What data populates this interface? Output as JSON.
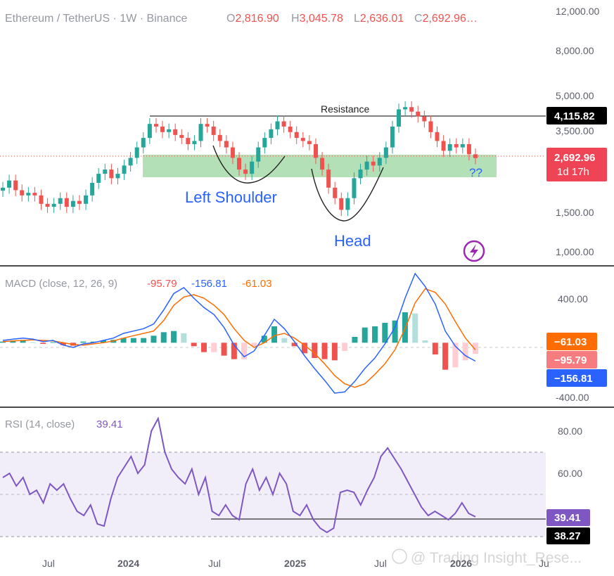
{
  "header": {
    "symbol": "Ethereum / TetherUS · 1W · Binance",
    "o_label": "O",
    "o_value": "2,816.90",
    "h_label": "H",
    "h_value": "3,045.78",
    "l_label": "L",
    "l_value": "2,636.01",
    "c_label": "C",
    "c_value": "2,692.96…"
  },
  "price_axis": [
    "12,000.00",
    "8,000.00",
    "5,000.00",
    "3,500.00",
    "1,500.00",
    "1,000.00"
  ],
  "price_tags": {
    "resistance_value": "4,115.82",
    "last_price": "2,692.96",
    "countdown": "1d 17h"
  },
  "annotations": {
    "resistance": "Resistance",
    "left_shoulder": "Left Shoulder",
    "head": "Head",
    "question": "??"
  },
  "macd": {
    "label": "MACD (close, 12, 26, 9)",
    "hist_value": "-95.79",
    "macd_value": "-156.81",
    "signal_value": "-61.03",
    "axis": [
      "400.00",
      "-400.00"
    ],
    "tag_signal": "−61.03",
    "tag_hist": "−95.79",
    "tag_macd": "−156.81"
  },
  "rsi": {
    "label": "RSI (14, close)",
    "value": "39.41",
    "axis": [
      "80.00",
      "60.00"
    ],
    "tag_value": "39.41",
    "tag_line": "38.27"
  },
  "time_axis": [
    "Jul",
    "2024",
    "Jul",
    "2025",
    "Jul",
    "2026",
    "Ju"
  ],
  "watermark": "@ Trading Insight_Rese...",
  "colors": {
    "up": "#26a69a",
    "down": "#ef5350",
    "macd": "#2962ff",
    "signal": "#ff6d00",
    "rsi": "#7e57c2",
    "zone": "#99d59e",
    "pattern_text": "#2962ff"
  },
  "chart_data": [
    {
      "type": "candlestick",
      "title": "Ethereum / TetherUS · 1W · Binance",
      "scale": "log",
      "ylim": [
        950,
        12500
      ],
      "x_ticks": [
        "Jul",
        "2024",
        "Jul",
        "2025",
        "Jul",
        "2026",
        "Ju"
      ],
      "y_ticks": [
        12000,
        8000,
        5000,
        3500,
        1500,
        1000
      ],
      "support_zone": [
        2150,
        2800
      ],
      "resistance": 4115.82,
      "last": {
        "open": 2816.9,
        "high": 3045.78,
        "low": 2636.01,
        "close": 2692.96
      },
      "approx_close_path": [
        2000,
        2150,
        1950,
        1850,
        1900,
        1850,
        1700,
        1650,
        1700,
        1800,
        1650,
        1750,
        1700,
        1850,
        2100,
        2300,
        2400,
        2200,
        2300,
        2500,
        2700,
        3000,
        3300,
        3800,
        3700,
        3500,
        3600,
        3400,
        3300,
        3100,
        3200,
        3800,
        3700,
        3400,
        3200,
        3000,
        2700,
        2400,
        2300,
        2600,
        3000,
        3300,
        3600,
        3900,
        3700,
        3500,
        3300,
        3200,
        3100,
        2700,
        2400,
        2000,
        1800,
        1600,
        1800,
        2200,
        2400,
        2600,
        2500,
        2700,
        3000,
        3700,
        4400,
        4500,
        4300,
        4100,
        3900,
        3500,
        3200,
        2900,
        3100,
        3000,
        3100,
        2800,
        2693
      ]
    },
    {
      "type": "line",
      "title": "MACD (close, 12, 26, 9)",
      "ylim": [
        -520,
        620
      ],
      "series": [
        {
          "name": "MACD",
          "values": [
            20,
            30,
            40,
            30,
            10,
            20,
            -20,
            -40,
            -10,
            0,
            20,
            40,
            80,
            100,
            120,
            160,
            280,
            420,
            470,
            380,
            300,
            240,
            130,
            -20,
            -120,
            -70,
            60,
            200,
            120,
            10,
            -110,
            -220,
            -320,
            -430,
            -420,
            -330,
            -220,
            -130,
            -10,
            130,
            380,
            590,
            480,
            330,
            100,
            -30,
            -110,
            -156.81
          ]
        },
        {
          "name": "Signal",
          "values": [
            10,
            15,
            20,
            25,
            20,
            15,
            0,
            -15,
            -20,
            -10,
            0,
            15,
            40,
            60,
            80,
            100,
            190,
            320,
            390,
            410,
            380,
            320,
            240,
            120,
            20,
            -40,
            0,
            60,
            80,
            40,
            -20,
            -90,
            -180,
            -280,
            -350,
            -380,
            -350,
            -270,
            -180,
            -60,
            120,
            340,
            460,
            430,
            330,
            180,
            40,
            -61.03
          ]
        }
      ],
      "histogram": [
        10,
        15,
        20,
        5,
        -10,
        5,
        -20,
        -25,
        10,
        10,
        20,
        25,
        40,
        40,
        40,
        60,
        90,
        100,
        80,
        -30,
        -80,
        -80,
        -110,
        -140,
        -140,
        -30,
        60,
        140,
        40,
        -30,
        -90,
        -130,
        -140,
        -150,
        -70,
        50,
        130,
        140,
        170,
        190,
        260,
        250,
        20,
        -100,
        -230,
        -210,
        -150,
        -95.79
      ]
    },
    {
      "type": "line",
      "title": "RSI (14, close)",
      "ylim": [
        28,
        88
      ],
      "bands": [
        30,
        50,
        70
      ],
      "reference_line": 38.27,
      "values": [
        58,
        60,
        54,
        58,
        50,
        52,
        46,
        55,
        52,
        55,
        48,
        42,
        40,
        45,
        36,
        35,
        48,
        58,
        63,
        68,
        60,
        64,
        80,
        86,
        70,
        62,
        58,
        55,
        62,
        50,
        58,
        42,
        40,
        45,
        40,
        38,
        55,
        62,
        52,
        58,
        50,
        60,
        55,
        42,
        40,
        45,
        38,
        34,
        32,
        34,
        51,
        52,
        51,
        45,
        52,
        58,
        68,
        72,
        67,
        62,
        56,
        50,
        44,
        40,
        42,
        40,
        38,
        41,
        46,
        41,
        39.41
      ]
    }
  ]
}
